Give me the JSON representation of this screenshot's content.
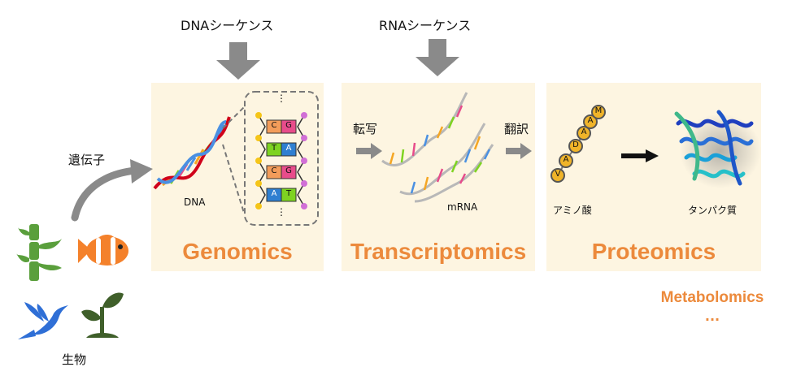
{
  "top_labels": {
    "dna_sequence": "DNAシーケンス",
    "rna_sequence": "RNAシーケンス"
  },
  "left": {
    "gene_label": "遺伝子",
    "organism_label": "生物"
  },
  "genomics": {
    "title": "Genomics",
    "dna_label": "DNA",
    "nucleotides": [
      "C",
      "G",
      "T",
      "A",
      "C",
      "G",
      "A",
      "T"
    ],
    "ellipsis": "⋮"
  },
  "transcriptomics": {
    "title": "Transcriptomics",
    "transcription_label": "転写",
    "mrna_label": "mRNA"
  },
  "proteomics": {
    "title": "Proteomics",
    "translation_label": "翻訳",
    "amino_acid_label": "アミノ酸",
    "protein_label": "タンパク質",
    "amino_letters": [
      "V",
      "A",
      "D",
      "A",
      "A",
      "M"
    ]
  },
  "metabolomics": {
    "title": "Metabolomics",
    "ellipsis": "..."
  },
  "colors": {
    "panel": "#fdf5e1",
    "accent": "#ec8a3c",
    "arrow": "#8a8a8a"
  }
}
